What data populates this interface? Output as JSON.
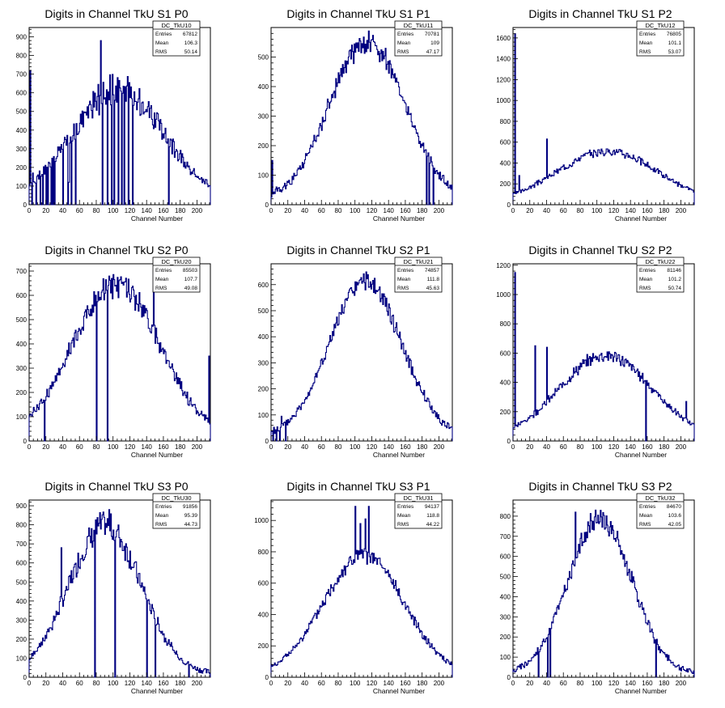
{
  "chart_data": [
    {
      "type": "bar",
      "title": "Digits in Channel TkU S1 P0",
      "xlabel": "Channel Number",
      "ylabel": "",
      "xlim": [
        0,
        216
      ],
      "ylim": [
        0,
        950
      ],
      "xticks": [
        0,
        20,
        40,
        60,
        80,
        100,
        120,
        140,
        160,
        180,
        200
      ],
      "yticks": [
        100,
        200,
        300,
        400,
        500,
        600,
        700,
        800,
        900
      ],
      "stats": {
        "name": "DC_TkU10",
        "entries": "67812",
        "mean": "106.3",
        "rms": "50.14"
      },
      "shape": {
        "peak": 600,
        "center": 106,
        "sigma": 55,
        "noise": 0.14,
        "seed": 1
      },
      "spikes": [
        [
          1,
          720
        ],
        [
          4,
          170
        ],
        [
          10,
          160
        ],
        [
          47,
          120
        ],
        [
          85,
          880
        ]
      ],
      "gaps": [
        3,
        8,
        13,
        16,
        20,
        22,
        26,
        28,
        30,
        40,
        46,
        50,
        55,
        87,
        93,
        98,
        101,
        106,
        110,
        113,
        118,
        123,
        166
      ]
    },
    {
      "type": "bar",
      "title": "Digits in Channel TkU S1 P1",
      "xlabel": "Channel Number",
      "ylabel": "",
      "xlim": [
        0,
        216
      ],
      "ylim": [
        0,
        600
      ],
      "xticks": [
        0,
        20,
        40,
        60,
        80,
        100,
        120,
        140,
        160,
        180,
        200
      ],
      "yticks": [
        100,
        200,
        300,
        400,
        500
      ],
      "stats": {
        "name": "DC_TkU11",
        "entries": "70781",
        "mean": "109",
        "rms": "47.17"
      },
      "shape": {
        "peak": 535,
        "center": 114,
        "sigma": 45,
        "noise": 0.06,
        "seed": 2
      },
      "spikes": [
        [
          1,
          150
        ],
        [
          201,
          110
        ]
      ],
      "gaps": [
        185,
        188,
        193
      ]
    },
    {
      "type": "bar",
      "title": "Digits in Channel TkU S1 P2",
      "xlabel": "Channel Number",
      "ylabel": "",
      "xlim": [
        0,
        216
      ],
      "ylim": [
        0,
        1700
      ],
      "xticks": [
        0,
        20,
        40,
        60,
        80,
        100,
        120,
        140,
        160,
        180,
        200
      ],
      "yticks": [
        200,
        400,
        600,
        800,
        1000,
        1200,
        1400,
        1600
      ],
      "stats": {
        "name": "DC_TkU12",
        "entries": "76805",
        "mean": "101.1",
        "rms": "53.07"
      },
      "shape": {
        "peak": 500,
        "center": 112,
        "sigma": 60,
        "noise": 0.07,
        "seed": 3
      },
      "spikes": [
        [
          2,
          1640
        ],
        [
          40,
          630
        ],
        [
          7,
          280
        ]
      ],
      "gaps": []
    },
    {
      "type": "bar",
      "title": "Digits in Channel TkU S2 P0",
      "xlabel": "Channel Number",
      "ylabel": "",
      "xlim": [
        0,
        216
      ],
      "ylim": [
        0,
        730
      ],
      "xticks": [
        0,
        20,
        40,
        60,
        80,
        100,
        120,
        140,
        160,
        180,
        200
      ],
      "yticks": [
        100,
        200,
        300,
        400,
        500,
        600,
        700
      ],
      "stats": {
        "name": "DC_TkU20",
        "entries": "85503",
        "mean": "107.7",
        "rms": "49.08"
      },
      "shape": {
        "peak": 630,
        "center": 103,
        "sigma": 52,
        "noise": 0.08,
        "seed": 4
      },
      "spikes": [
        [
          148,
          700
        ],
        [
          214,
          350
        ]
      ],
      "gaps": [
        18,
        80,
        93
      ]
    },
    {
      "type": "bar",
      "title": "Digits in Channel TkU S2 P1",
      "xlabel": "Channel Number",
      "ylabel": "",
      "xlim": [
        0,
        216
      ],
      "ylim": [
        0,
        680
      ],
      "xticks": [
        0,
        20,
        40,
        60,
        80,
        100,
        120,
        140,
        160,
        180,
        200
      ],
      "yticks": [
        100,
        200,
        300,
        400,
        500,
        600
      ],
      "stats": {
        "name": "DC_TkU21",
        "entries": "74857",
        "mean": "111.8",
        "rms": "45.63"
      },
      "shape": {
        "peak": 595,
        "center": 112,
        "sigma": 43,
        "noise": 0.05,
        "seed": 5
      },
      "spikes": [
        [
          12,
          95
        ]
      ],
      "gaps": [
        2,
        6,
        10,
        17
      ]
    },
    {
      "type": "bar",
      "title": "Digits in Channel TkU S2 P2",
      "xlabel": "Channel Number",
      "ylabel": "",
      "xlim": [
        0,
        216
      ],
      "ylim": [
        0,
        1210
      ],
      "xticks": [
        0,
        20,
        40,
        60,
        80,
        100,
        120,
        140,
        160,
        180,
        200
      ],
      "yticks": [
        200,
        400,
        600,
        800,
        1000,
        1200
      ],
      "stats": {
        "name": "DC_TkU22",
        "entries": "81146",
        "mean": "101.2",
        "rms": "50.74"
      },
      "shape": {
        "peak": 570,
        "center": 110,
        "sigma": 55,
        "noise": 0.07,
        "seed": 6
      },
      "spikes": [
        [
          2,
          1150
        ],
        [
          26,
          650
        ],
        [
          40,
          640
        ],
        [
          206,
          270
        ]
      ],
      "gaps": [
        158
      ]
    },
    {
      "type": "bar",
      "title": "Digits in Channel TkU S3 P0",
      "xlabel": "Channel Number",
      "ylabel": "",
      "xlim": [
        0,
        216
      ],
      "ylim": [
        0,
        930
      ],
      "xticks": [
        0,
        20,
        40,
        60,
        80,
        100,
        120,
        140,
        160,
        180,
        200
      ],
      "yticks": [
        100,
        200,
        300,
        400,
        500,
        600,
        700,
        800,
        900
      ],
      "stats": {
        "name": "DC_TkU30",
        "entries": "91856",
        "mean": "95.39",
        "rms": "44.73"
      },
      "shape": {
        "peak": 780,
        "center": 90,
        "sigma": 43,
        "noise": 0.09,
        "seed": 7
      },
      "spikes": [
        [
          38,
          680
        ],
        [
          95,
          880
        ]
      ],
      "gaps": [
        78,
        102,
        140,
        150,
        190
      ]
    },
    {
      "type": "bar",
      "title": "Digits in Channel TkU S3 P1",
      "xlabel": "Channel Number",
      "ylabel": "",
      "xlim": [
        0,
        216
      ],
      "ylim": [
        0,
        1130
      ],
      "xticks": [
        0,
        20,
        40,
        60,
        80,
        100,
        120,
        140,
        160,
        180,
        200
      ],
      "yticks": [
        200,
        400,
        600,
        800,
        1000
      ],
      "stats": {
        "name": "DC_TkU31",
        "entries": "94137",
        "mean": "118.8",
        "rms": "44.22"
      },
      "shape": {
        "peak": 760,
        "center": 110,
        "sigma": 48,
        "noise": 0.06,
        "seed": 8
      },
      "spikes": [
        [
          100,
          1090
        ],
        [
          116,
          1090
        ],
        [
          106,
          980
        ],
        [
          112,
          1010
        ]
      ],
      "gaps": []
    },
    {
      "type": "bar",
      "title": "Digits in Channel TkU S3 P2",
      "xlabel": "Channel Number",
      "ylabel": "",
      "xlim": [
        0,
        216
      ],
      "ylim": [
        0,
        880
      ],
      "xticks": [
        0,
        20,
        40,
        60,
        80,
        100,
        120,
        140,
        160,
        180,
        200
      ],
      "yticks": [
        100,
        200,
        300,
        400,
        500,
        600,
        700,
        800
      ],
      "stats": {
        "name": "DC_TkU32",
        "entries": "84670",
        "mean": "103.6",
        "rms": "42.05"
      },
      "shape": {
        "peak": 770,
        "center": 103,
        "sigma": 38,
        "noise": 0.07,
        "seed": 9
      },
      "spikes": [
        [
          74,
          820
        ],
        [
          98,
          830
        ]
      ],
      "gaps": [
        30,
        41,
        44,
        170
      ]
    }
  ],
  "labels": {
    "entries": "Entries",
    "mean": "Mean",
    "rms": "RMS"
  },
  "colors": {
    "line": "#000080",
    "frame": "#000000"
  }
}
